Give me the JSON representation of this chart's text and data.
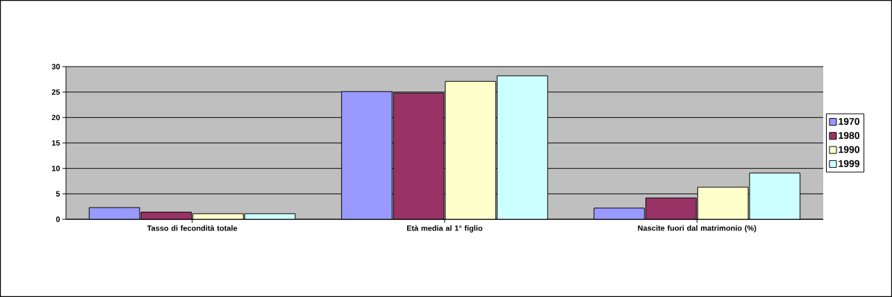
{
  "chart_data": {
    "type": "bar",
    "categories": [
      "Tasso di fecondità totale",
      "Età media al 1° figlio",
      "Nascite fuori dal matrimonio (%)"
    ],
    "series": [
      {
        "name": "1970",
        "color": "#9999ff",
        "values": [
          2.3,
          25.1,
          2.2
        ]
      },
      {
        "name": "1980",
        "color": "#993366",
        "values": [
          1.4,
          24.8,
          4.2
        ]
      },
      {
        "name": "1990",
        "color": "#ffffcc",
        "values": [
          1.1,
          27.1,
          6.3
        ]
      },
      {
        "name": "1999",
        "color": "#ccffff",
        "values": [
          1.1,
          28.2,
          9.1
        ]
      }
    ],
    "ylim": [
      0,
      30
    ],
    "yticks": [
      0,
      5,
      10,
      15,
      20,
      25,
      30
    ],
    "grid": "y",
    "legend": "right"
  }
}
